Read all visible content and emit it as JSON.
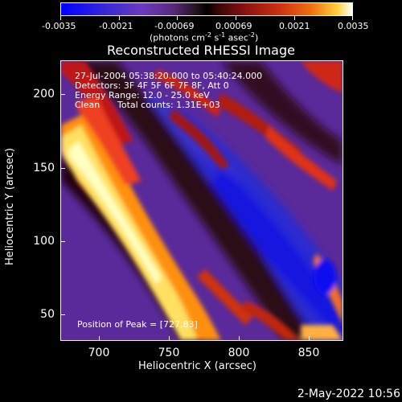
{
  "colorbar": {
    "tick_labels": [
      "-0.0035",
      "-0.0021",
      "-0.00069",
      "0.00069",
      "0.0021",
      "0.0035"
    ],
    "unit_line1": "(photons cm",
    "unit_sup1": "-2",
    "unit_line2": " s",
    "unit_sup2": "-1",
    "unit_line3": " asec",
    "unit_sup3": "-2",
    "unit_close": ")"
  },
  "title": "Reconstructed RHESSI Image",
  "info": {
    "time": "27-Jul-2004 05:38:20.000 to 05:40:24.000",
    "detectors": "Detectors: 3F 4F 5F 6F 7F 8F, Att 0",
    "energy": "Energy Range: 12.0 - 25.0 keV",
    "clean": "Clean",
    "counts": "Total counts: 1.31E+03",
    "peak": "Position of Peak = [727,83]"
  },
  "axes": {
    "xlabel": "Heliocentric X (arcsec)",
    "ylabel": "Heliocentric Y (arcsec)",
    "xticks": [
      "700",
      "750",
      "800",
      "850"
    ],
    "yticks": [
      "200",
      "150",
      "100",
      "50"
    ]
  },
  "timestamp": "2-May-2022 10:56",
  "colors": {
    "background": "#000000",
    "foreground": "#ffffff"
  }
}
